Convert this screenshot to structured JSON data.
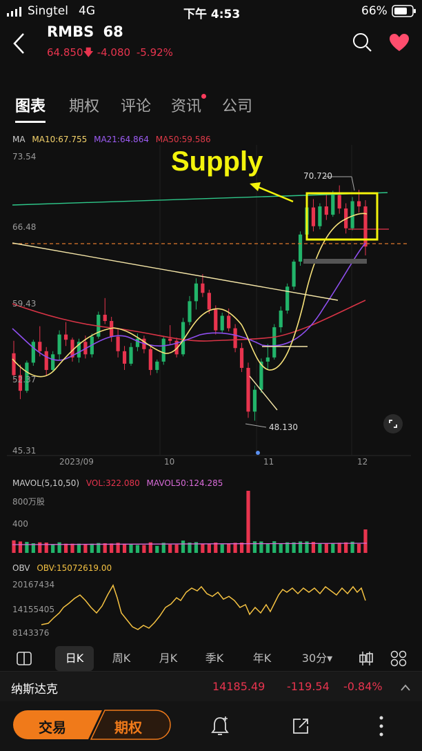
{
  "status_bar": {
    "carrier": "Singtel",
    "network": "4G",
    "time": "下午 4:53",
    "battery": "66%"
  },
  "header": {
    "symbol": "RMBS",
    "count": "68",
    "price": "64.850",
    "change": "-4.080",
    "change_pct": "-5.92%",
    "down_color": "#e8344e"
  },
  "tabs": [
    {
      "label": "图表",
      "active": true
    },
    {
      "label": "期权"
    },
    {
      "label": "评论"
    },
    {
      "label": "资讯",
      "dot": true
    },
    {
      "label": "公司"
    }
  ],
  "ma_legend": {
    "title": "MA",
    "ma10": "MA10:67.755",
    "ma21": "MA21:64.864",
    "ma50": "MA50:59.586"
  },
  "price_axis": [
    "73.54",
    "66.48",
    "59.43",
    "52.37",
    "45.31"
  ],
  "date_axis": [
    "2023/09",
    "10",
    "11",
    "12"
  ],
  "annotations": {
    "supply": "Supply",
    "high": "70.720",
    "low": "48.130"
  },
  "mavol": {
    "legend": "MAVOL(5,10,50)",
    "vol": "VOL:322.080",
    "mavol50": "MAVOL50:124.285",
    "axis": [
      "800万股",
      "400"
    ]
  },
  "obv": {
    "legend": "OBV",
    "value": "OBV:15072619.00",
    "axis": [
      "20167434",
      "14155405",
      "8143376"
    ]
  },
  "timeframes": [
    {
      "label": "日K",
      "active": true
    },
    {
      "label": "周K"
    },
    {
      "label": "月K"
    },
    {
      "label": "季K"
    },
    {
      "label": "年K"
    },
    {
      "label": "30分▾"
    }
  ],
  "index_bar": {
    "name": "纳斯达克",
    "value": "14185.49",
    "change": "-119.54",
    "change_pct": "-0.84%"
  },
  "bottom_bar": {
    "trade": "交易",
    "options": "期权"
  },
  "chart_data": {
    "type": "candlestick",
    "y_axis": {
      "ticks": [
        73.54,
        66.48,
        59.43,
        52.37,
        45.31
      ],
      "range": [
        45.31,
        73.54
      ]
    },
    "x_ticks": [
      "2023/09",
      "10",
      "11",
      "12"
    ],
    "candles": [
      [
        54.6,
        55.8,
        52.0,
        52.5
      ],
      [
        52.5,
        53.5,
        50.2,
        51.0
      ],
      [
        51.0,
        53.9,
        50.8,
        53.7
      ],
      [
        53.7,
        55.9,
        53.4,
        55.7
      ],
      [
        55.7,
        57.2,
        54.3,
        54.8
      ],
      [
        54.8,
        55.2,
        52.4,
        53.0
      ],
      [
        53.0,
        54.8,
        52.8,
        54.5
      ],
      [
        54.5,
        56.8,
        53.9,
        56.4
      ],
      [
        56.4,
        57.6,
        55.3,
        55.9
      ],
      [
        55.9,
        56.1,
        53.8,
        54.2
      ],
      [
        54.2,
        56.0,
        53.7,
        55.7
      ],
      [
        55.7,
        56.3,
        54.1,
        54.5
      ],
      [
        54.5,
        56.5,
        54.2,
        56.2
      ],
      [
        56.2,
        58.6,
        56.0,
        58.3
      ],
      [
        58.3,
        59.9,
        57.4,
        57.7
      ],
      [
        57.7,
        58.1,
        55.7,
        56.2
      ],
      [
        56.2,
        56.9,
        54.2,
        54.8
      ],
      [
        54.8,
        55.3,
        53.0,
        53.6
      ],
      [
        53.6,
        55.6,
        53.4,
        55.2
      ],
      [
        55.2,
        56.5,
        54.8,
        56.0
      ],
      [
        56.0,
        56.3,
        54.6,
        55.0
      ],
      [
        55.0,
        55.4,
        52.5,
        53.0
      ],
      [
        53.0,
        54.0,
        52.7,
        53.8
      ],
      [
        53.8,
        56.2,
        53.5,
        56.0
      ],
      [
        56.0,
        57.3,
        55.4,
        55.8
      ],
      [
        55.8,
        56.1,
        54.2,
        54.5
      ],
      [
        54.5,
        58.0,
        54.3,
        57.6
      ],
      [
        57.6,
        60.1,
        57.3,
        59.6
      ],
      [
        59.6,
        61.8,
        58.8,
        61.3
      ],
      [
        61.3,
        62.2,
        60.0,
        60.4
      ],
      [
        60.4,
        60.7,
        58.4,
        58.8
      ],
      [
        58.8,
        59.2,
        56.4,
        56.8
      ],
      [
        56.8,
        58.5,
        56.5,
        58.2
      ],
      [
        58.2,
        58.9,
        56.7,
        57.0
      ],
      [
        57.0,
        57.4,
        54.7,
        55.1
      ],
      [
        55.1,
        55.6,
        52.8,
        53.2
      ],
      [
        53.2,
        53.7,
        48.4,
        49.0
      ],
      [
        49.0,
        51.5,
        48.13,
        51.1
      ],
      [
        51.1,
        54.1,
        50.8,
        53.8
      ],
      [
        53.8,
        55.5,
        53.0,
        54.2
      ],
      [
        54.2,
        57.4,
        54.0,
        57.1
      ],
      [
        57.1,
        59.1,
        56.6,
        58.7
      ],
      [
        58.7,
        61.3,
        58.4,
        61.0
      ],
      [
        61.0,
        63.6,
        60.7,
        63.4
      ],
      [
        63.4,
        66.3,
        63.0,
        66.0
      ],
      [
        66.0,
        68.9,
        65.6,
        68.6
      ],
      [
        68.6,
        69.4,
        66.3,
        66.8
      ],
      [
        66.8,
        69.0,
        66.5,
        68.7
      ],
      [
        68.7,
        69.8,
        67.4,
        67.9
      ],
      [
        67.9,
        70.2,
        67.7,
        69.8
      ],
      [
        69.8,
        70.72,
        68.0,
        68.5
      ],
      [
        68.5,
        69.0,
        66.1,
        66.6
      ],
      [
        66.6,
        69.6,
        66.4,
        69.2
      ],
      [
        69.2,
        70.3,
        68.1,
        68.7
      ],
      [
        68.7,
        69.3,
        64.0,
        64.85
      ]
    ]
  }
}
